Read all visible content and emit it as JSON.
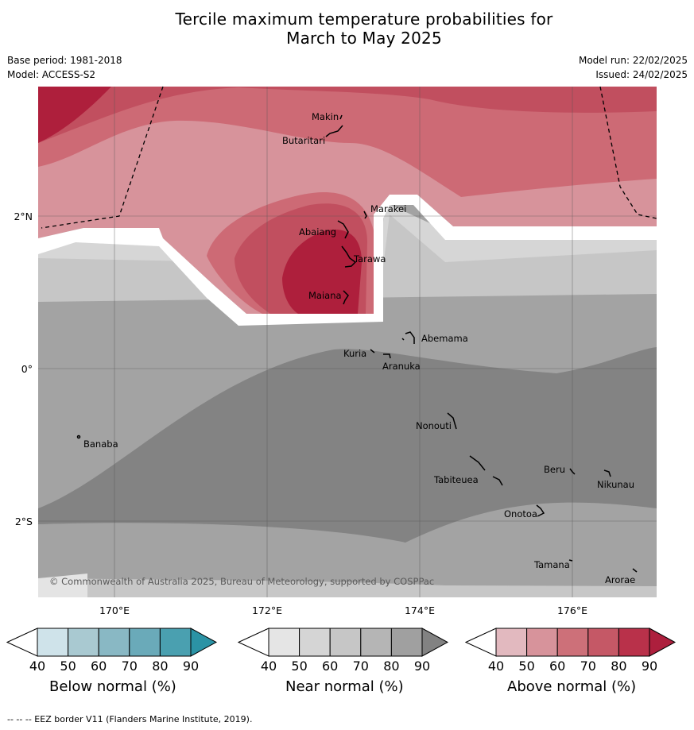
{
  "title": {
    "line1": "Tercile maximum temperature probabilities for",
    "line2": "March to May 2025"
  },
  "meta": {
    "base_period": "Base period: 1981-2018",
    "model": "Model: ACCESS-S2",
    "model_run": "Model run: 22/02/2025",
    "issued": "Issued: 24/02/2025"
  },
  "map": {
    "lon_labels": [
      "170°E",
      "172°E",
      "174°E",
      "176°E"
    ],
    "lat_labels": [
      "2°N",
      "0°",
      "2°S"
    ],
    "places": [
      {
        "name": "Makin",
        "lon": 173.0,
        "lat": 3.33
      },
      {
        "name": "Butaritari",
        "lon": 172.8,
        "lat": 3.07
      },
      {
        "name": "Marakei",
        "lon": 173.3,
        "lat": 2.0
      },
      {
        "name": "Abaiang",
        "lon": 172.95,
        "lat": 1.85
      },
      {
        "name": "Tarawa",
        "lon": 173.02,
        "lat": 1.4
      },
      {
        "name": "Maiana",
        "lon": 173.03,
        "lat": 0.93
      },
      {
        "name": "Abemama",
        "lon": 173.85,
        "lat": 0.4
      },
      {
        "name": "Kuria",
        "lon": 173.42,
        "lat": 0.22
      },
      {
        "name": "Aranuka",
        "lon": 173.6,
        "lat": 0.17
      },
      {
        "name": "Banaba",
        "lon": 169.53,
        "lat": -0.88
      },
      {
        "name": "Nonouti",
        "lon": 174.4,
        "lat": -0.68
      },
      {
        "name": "Beru",
        "lon": 176.0,
        "lat": -1.33
      },
      {
        "name": "Nikunau",
        "lon": 176.45,
        "lat": -1.37
      },
      {
        "name": "Tabiteuea",
        "lon": 174.8,
        "lat": -1.33
      },
      {
        "name": "Onotoa",
        "lon": 175.55,
        "lat": -1.8
      },
      {
        "name": "Tamana",
        "lon": 175.98,
        "lat": -2.5
      },
      {
        "name": "Arorae",
        "lon": 176.82,
        "lat": -2.64
      }
    ],
    "copyright": "© Commonwealth of Australia 2025, Bureau of Meteorology, supported by COSPPac"
  },
  "colorbars": [
    {
      "label": "Below normal (%)",
      "ticks": [
        "40",
        "50",
        "60",
        "70",
        "80",
        "90"
      ],
      "colors": [
        "#ffffff",
        "#cfe3ea",
        "#a9c9d1",
        "#89b8c4",
        "#6aaab9",
        "#4aa0b0",
        "#2b93a5"
      ]
    },
    {
      "label": "Near normal (%)",
      "ticks": [
        "40",
        "50",
        "60",
        "70",
        "80",
        "90"
      ],
      "colors": [
        "#ffffff",
        "#e5e5e5",
        "#d5d5d5",
        "#c6c6c6",
        "#b5b5b5",
        "#a0a0a0",
        "#828282"
      ]
    },
    {
      "label": "Above normal (%)",
      "ticks": [
        "40",
        "50",
        "60",
        "70",
        "80",
        "90"
      ],
      "colors": [
        "#ffffff",
        "#e2b9bf",
        "#d7939b",
        "#cd7079",
        "#c55866",
        "#b9314a",
        "#ad1f3d"
      ]
    }
  ],
  "footnote": "--  --  -- EEZ border V11 (Flanders Marine Institute, 2019)."
}
